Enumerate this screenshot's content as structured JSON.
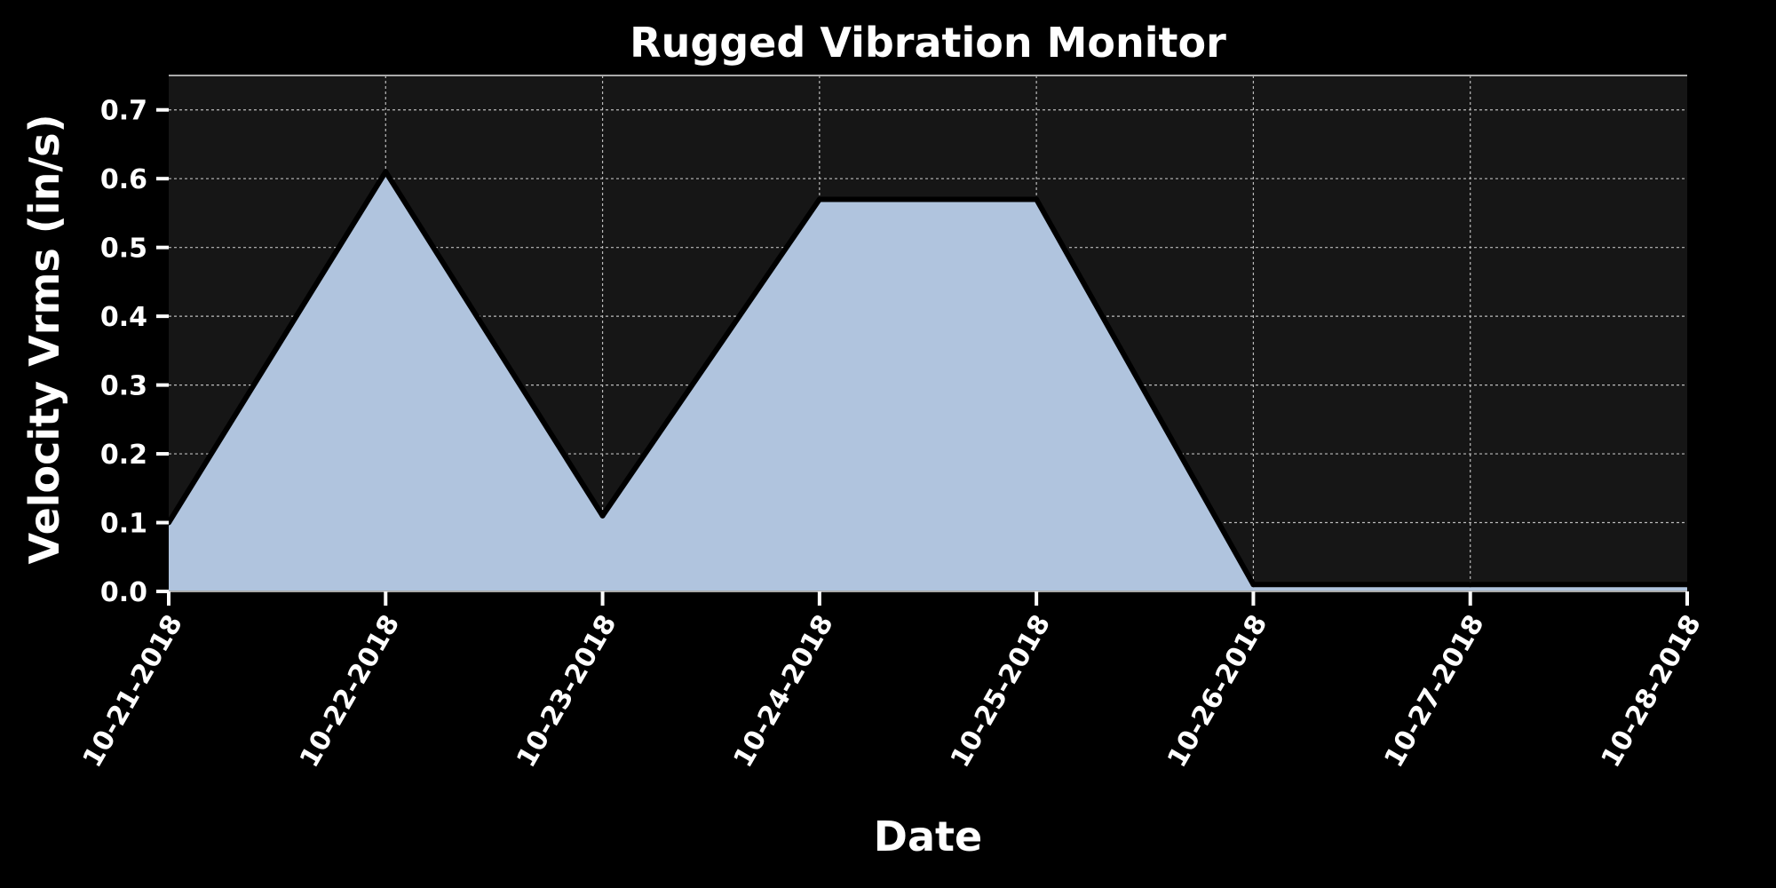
{
  "chart_data": {
    "type": "area",
    "title": "Rugged Vibration Monitor",
    "xlabel": "Date",
    "ylabel": "Velocity Vrms (in/s)",
    "x": [
      "10-21-2018",
      "10-22-2018",
      "10-23-2018",
      "10-24-2018",
      "10-25-2018",
      "10-26-2018",
      "10-27-2018",
      "10-28-2018"
    ],
    "series": [
      {
        "values": [
          0.1,
          0.61,
          0.11,
          0.57,
          0.57,
          0.01,
          0.01,
          0.01
        ]
      }
    ],
    "ylim": [
      0,
      0.75
    ],
    "yticks": [
      "0.0",
      "0.1",
      "0.2",
      "0.3",
      "0.4",
      "0.5",
      "0.6",
      "0.7"
    ],
    "grid": true,
    "colors": {
      "background": "#000000",
      "plot_background": "#161616",
      "fill": "#b0c4de",
      "line": "#000000",
      "grid": "#bbbbbb",
      "text": "#ffffff"
    }
  }
}
